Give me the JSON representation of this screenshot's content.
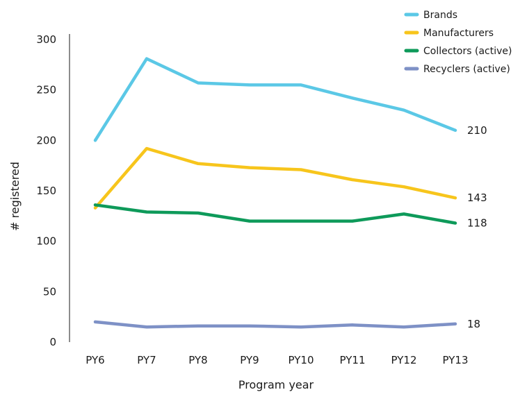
{
  "chart_data": {
    "type": "line",
    "title": "",
    "xlabel": "Program year",
    "ylabel": "# registered",
    "categories": [
      "PY6",
      "PY7",
      "PY8",
      "PY9",
      "PY10",
      "PY11",
      "PY12",
      "PY13"
    ],
    "ylim": [
      0,
      300
    ],
    "yticks": [
      0,
      50,
      100,
      150,
      200,
      250,
      300
    ],
    "grid": false,
    "legend_position": "top-right",
    "series": [
      {
        "name": "Brands",
        "color": "#5BC8E6",
        "values": [
          200,
          281,
          257,
          255,
          255,
          242,
          230,
          210
        ],
        "end_label": "210"
      },
      {
        "name": "Manufacturers",
        "color": "#F7C51C",
        "values": [
          133,
          192,
          177,
          173,
          171,
          161,
          154,
          143
        ],
        "end_label": "143"
      },
      {
        "name": "Collectors (active)",
        "color": "#0E9A5A",
        "values": [
          136,
          129,
          128,
          120,
          120,
          120,
          127,
          118
        ],
        "end_label": "118"
      },
      {
        "name": "Recyclers (active)",
        "color": "#7E91C6",
        "values": [
          20,
          15,
          16,
          16,
          15,
          17,
          15,
          18
        ],
        "end_label": "18"
      }
    ]
  }
}
